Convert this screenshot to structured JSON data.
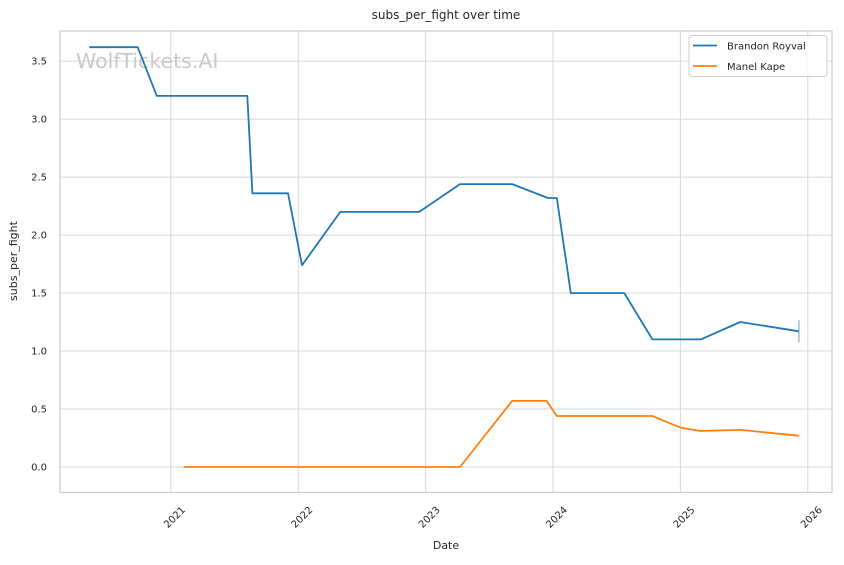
{
  "watermark": "WolfTickets.AI",
  "chart_data": {
    "type": "line",
    "title": "subs_per_fight over time",
    "xlabel": "Date",
    "ylabel": "subs_per_fight",
    "xlim": [
      2020.13,
      2026.19
    ],
    "ylim": [
      -0.22,
      3.76
    ],
    "xticks": [
      2021,
      2022,
      2023,
      2024,
      2025,
      2026
    ],
    "yticks": [
      0.0,
      0.5,
      1.0,
      1.5,
      2.0,
      2.5,
      3.0,
      3.5
    ],
    "grid": true,
    "legend_position": "upper right",
    "series": [
      {
        "name": "Brandon Royval",
        "color": "#1f77b4",
        "end_marker": true,
        "points": [
          [
            2020.36,
            3.62
          ],
          [
            2020.74,
            3.62
          ],
          [
            2020.89,
            3.2
          ],
          [
            2021.6,
            3.2
          ],
          [
            2021.64,
            2.36
          ],
          [
            2021.92,
            2.36
          ],
          [
            2022.03,
            1.74
          ],
          [
            2022.33,
            2.2
          ],
          [
            2022.95,
            2.2
          ],
          [
            2023.27,
            2.44
          ],
          [
            2023.68,
            2.44
          ],
          [
            2023.96,
            2.32
          ],
          [
            2024.03,
            2.32
          ],
          [
            2024.14,
            1.5
          ],
          [
            2024.56,
            1.5
          ],
          [
            2024.78,
            1.1
          ],
          [
            2025.16,
            1.1
          ],
          [
            2025.47,
            1.25
          ],
          [
            2025.93,
            1.17
          ]
        ]
      },
      {
        "name": "Manel Kape",
        "color": "#ff7f0e",
        "end_marker": false,
        "points": [
          [
            2021.1,
            0.0
          ],
          [
            2023.27,
            0.0
          ],
          [
            2023.68,
            0.57
          ],
          [
            2023.95,
            0.57
          ],
          [
            2024.03,
            0.44
          ],
          [
            2024.78,
            0.44
          ],
          [
            2025.0,
            0.34
          ],
          [
            2025.16,
            0.31
          ],
          [
            2025.47,
            0.32
          ],
          [
            2025.93,
            0.27
          ]
        ]
      }
    ]
  }
}
